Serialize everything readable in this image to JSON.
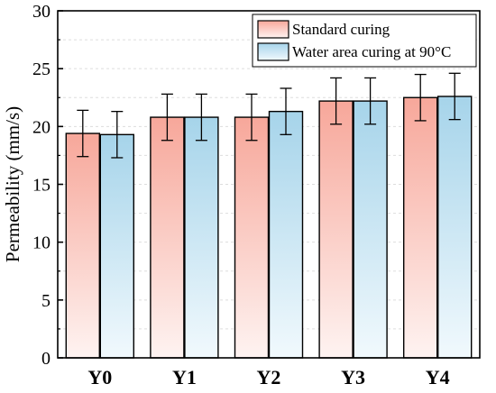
{
  "chart_data": {
    "type": "bar",
    "title": "",
    "xlabel": "",
    "ylabel": "Permeability (mm/s)",
    "ylim": [
      0,
      30
    ],
    "yticks": [
      0,
      5,
      10,
      15,
      20,
      25,
      30
    ],
    "grid": true,
    "legend_position": "top-right",
    "categories": [
      "Y0",
      "Y1",
      "Y2",
      "Y3",
      "Y4"
    ],
    "series": [
      {
        "name": "Standard curing",
        "values": [
          19.4,
          20.8,
          20.8,
          22.2,
          22.5
        ],
        "errors": [
          2.0,
          2.0,
          2.0,
          2.0,
          2.0
        ],
        "color_top": "#f7a79a",
        "color_bottom": "#fef3f1"
      },
      {
        "name": "Water area curing at 90°C",
        "values": [
          19.3,
          20.8,
          21.3,
          22.2,
          22.6
        ],
        "errors": [
          2.0,
          2.0,
          2.0,
          2.0,
          2.0
        ],
        "color_top": "#a6d4ea",
        "color_bottom": "#f1f9fd"
      }
    ]
  }
}
